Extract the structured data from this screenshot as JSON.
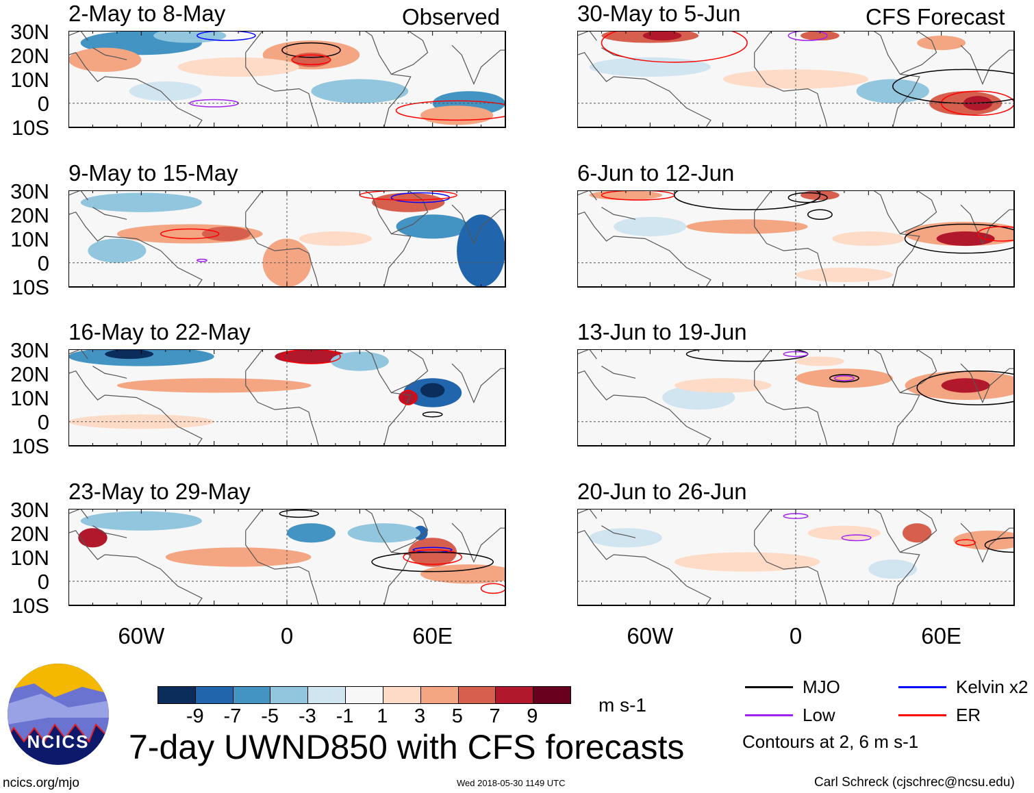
{
  "columns": {
    "left_header": "Observed",
    "right_header": "CFS Forecast"
  },
  "panels": [
    {
      "title": "2-May to 8-May"
    },
    {
      "title": "9-May to 15-May"
    },
    {
      "title": "16-May to 22-May"
    },
    {
      "title": "23-May to 29-May"
    },
    {
      "title": "30-May to 5-Jun"
    },
    {
      "title": "6-Jun to 12-Jun"
    },
    {
      "title": "13-Jun to 19-Jun"
    },
    {
      "title": "20-Jun to 26-Jun"
    }
  ],
  "lat_labels": [
    "30N",
    "20N",
    "10N",
    "0",
    "10S"
  ],
  "lon_labels": [
    "60W",
    "0",
    "60E"
  ],
  "colorbar": {
    "colors": [
      "#0b2d5c",
      "#2166ac",
      "#4393c3",
      "#92c5de",
      "#d1e5f0",
      "#f7f7f7",
      "#fddbc7",
      "#f4a582",
      "#d6604d",
      "#b2182b",
      "#67001f"
    ],
    "ticks": [
      "-9",
      "-7",
      "-5",
      "-3",
      "-1",
      "1",
      "3",
      "5",
      "7",
      "9"
    ],
    "units": "m s-1"
  },
  "title": "7-day UWND850 with CFS forecasts",
  "legend": {
    "items": [
      {
        "label": "MJO",
        "color": "#000000"
      },
      {
        "label": "Kelvin x2",
        "color": "#0000ff"
      },
      {
        "label": "Low",
        "color": "#a020f0"
      },
      {
        "label": "ER",
        "color": "#ff0000"
      }
    ],
    "note": "Contours at 2, 6 m s-1"
  },
  "logo": {
    "text": "NCICS"
  },
  "footer": {
    "url": "ncics.org/mjo",
    "timestamp": "Wed 2018-05-30 1149 UTC",
    "credit": "Carl Schreck (cjschrec@ncsu.edu)"
  }
}
